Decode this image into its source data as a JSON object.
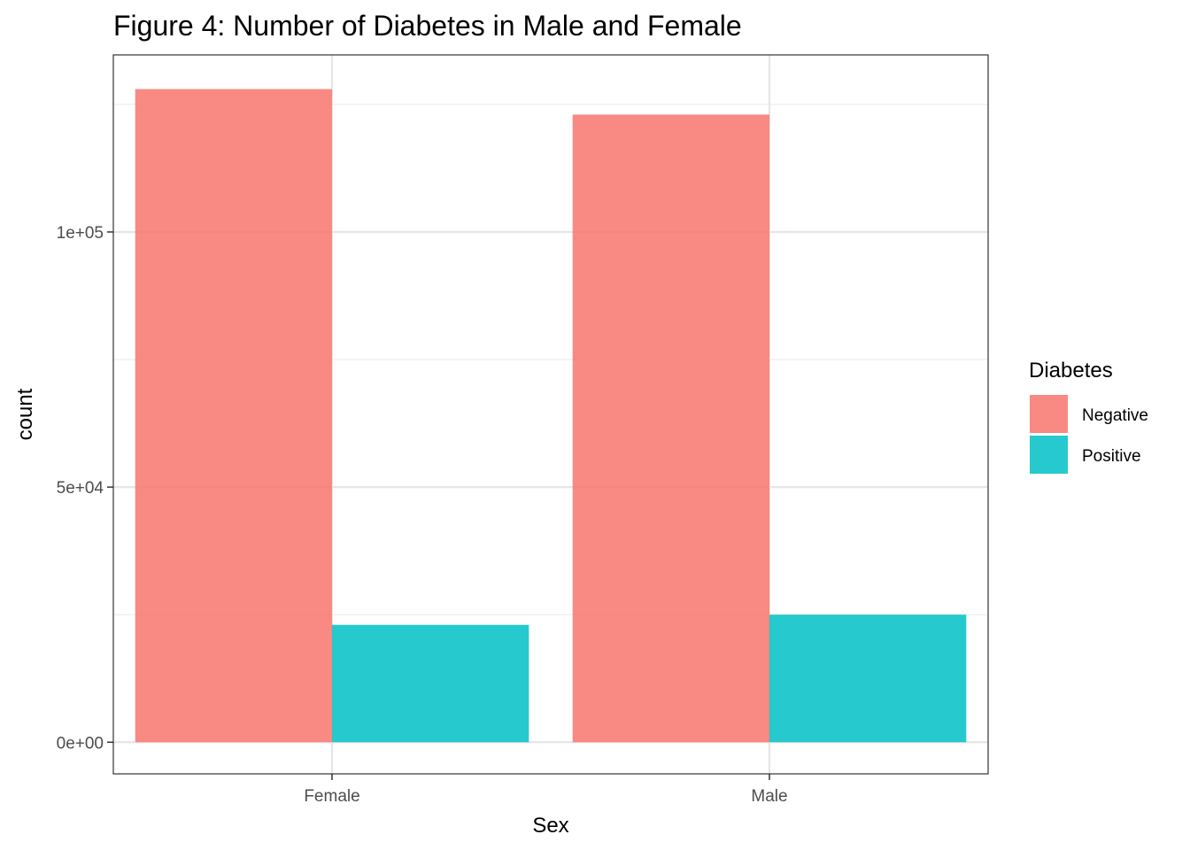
{
  "chart_data": {
    "type": "bar",
    "title": "Figure 4: Number of Diabetes in Male and Female",
    "xlabel": "Sex",
    "ylabel": "count",
    "categories": [
      "Female",
      "Male"
    ],
    "series": [
      {
        "name": "Negative",
        "values": [
          128000,
          123000
        ],
        "color": "#F8766D"
      },
      {
        "name": "Positive",
        "values": [
          23000,
          25000
        ],
        "color": "#00BFC4"
      }
    ],
    "ylim": [
      -6200,
      134700
    ],
    "yticks": [
      0,
      50000,
      100000
    ],
    "ytick_labels": [
      "0e+00",
      "5e+04",
      "1e+05"
    ],
    "legend": {
      "title": "Diabetes",
      "placement": "right"
    },
    "grid": true
  }
}
